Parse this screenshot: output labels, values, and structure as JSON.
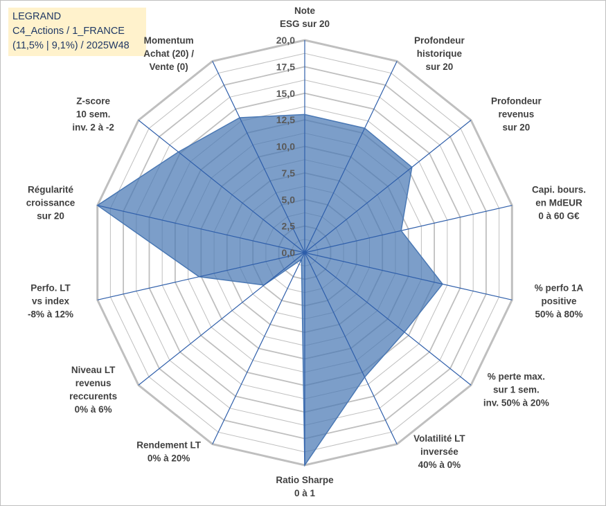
{
  "header": {
    "line1": "LEGRAND",
    "line2": "C4_Actions / 1_FRANCE",
    "line3": "(11,5% | 9,1%) / 2025W48"
  },
  "chart_data": {
    "type": "radar",
    "title": "LEGRAND",
    "r_max": 20,
    "r_ticks": [
      "0,0",
      "2,5",
      "5,0",
      "7,5",
      "10,0",
      "12,5",
      "15,0",
      "17,5",
      "20,0"
    ],
    "axes": [
      [
        "Note",
        "ESG sur 20"
      ],
      [
        "Profondeur",
        "historique",
        "sur 20"
      ],
      [
        "Profondeur",
        "revenus",
        "sur 20"
      ],
      [
        "Capi. bours.",
        "en MdEUR",
        "0 à 60 G€"
      ],
      [
        "% perfo 1A",
        "positive",
        "50% à 80%"
      ],
      [
        "% perte max.",
        "sur 1 sem.",
        "inv. 50% à 20%"
      ],
      [
        "Volatilité LT",
        "inversée",
        "40% à 0%"
      ],
      [
        "Ratio Sharpe",
        "0 à 1"
      ],
      [
        "Rendement LT",
        "0% à 20%"
      ],
      [
        "Niveau LT",
        "revenus",
        "reccurents",
        "0% à 6%"
      ],
      [
        "Perfo. LT",
        "vs index",
        "-8% à 12%"
      ],
      [
        "Régularité",
        "croissance",
        "sur 20"
      ],
      [
        "Z-score",
        "10 sem.",
        "inv. 2 à -2"
      ],
      [
        "Momentum",
        "Achat (20) /",
        "Vente (0)"
      ]
    ],
    "series": [
      {
        "name": "LEGRAND",
        "values": [
          13.0,
          13.0,
          12.9,
          9.3,
          13.3,
          12.0,
          13.0,
          20.0,
          0.7,
          4.9,
          10.2,
          20.0,
          15.2,
          14.1
        ],
        "color": "#4a78b4"
      }
    ],
    "colors": {
      "grid": "#bfbfbf",
      "spoke": "#2e5eaa",
      "fill": "#4a78b4"
    }
  }
}
